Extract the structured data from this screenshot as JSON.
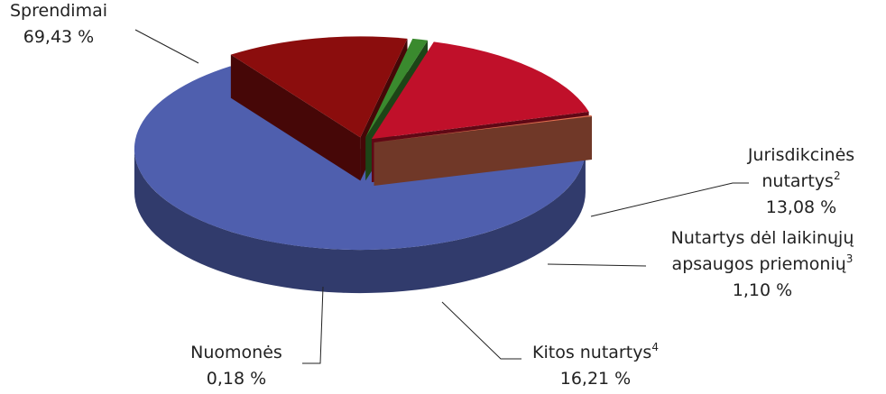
{
  "chart_data": {
    "type": "pie",
    "labels": [
      [
        "Sprendimai"
      ],
      [
        "Jurisdikcinės",
        "nutartys"
      ],
      [
        "Nutartys dėl laikinųjų",
        "apsaugos priemonių"
      ],
      [
        "Kitos nutartys"
      ],
      [
        "Nuomonės"
      ]
    ],
    "notes": [
      null,
      "2",
      "3",
      "4",
      null
    ],
    "values": [
      69.43,
      13.08,
      1.1,
      16.21,
      0.18
    ],
    "value_labels": [
      "69,43 %",
      "13,08 %",
      "1,10 %",
      "16,21 %",
      "0,18 %"
    ],
    "colors": [
      "#4f5fae",
      "#8b0d0d",
      "#3a8a2e",
      "#c0102a",
      "#e07050"
    ]
  }
}
